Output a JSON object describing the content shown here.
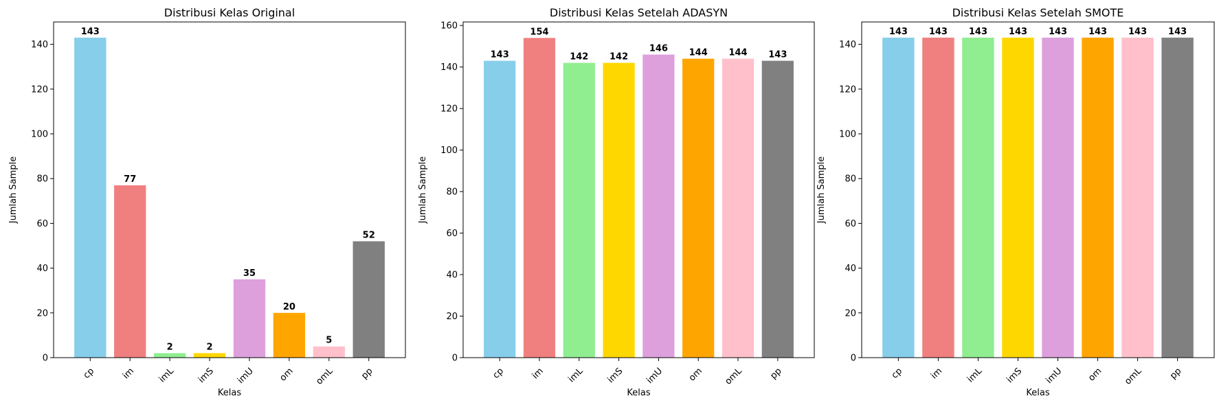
{
  "chart_data": [
    {
      "type": "bar",
      "title": "Distribusi Kelas Original",
      "xlabel": "Kelas",
      "ylabel": "Jumlah Sample",
      "categories": [
        "cp",
        "im",
        "imL",
        "imS",
        "imU",
        "om",
        "omL",
        "pp"
      ],
      "values": [
        143,
        77,
        2,
        2,
        35,
        20,
        5,
        52
      ],
      "ylim": [
        0,
        150
      ],
      "yticks": [
        0,
        20,
        40,
        60,
        80,
        100,
        120,
        140
      ],
      "grid": false,
      "colors": [
        "#87ceeb",
        "#f08080",
        "#90ee90",
        "#ffd700",
        "#dda0dd",
        "#ffa500",
        "#ffc0cb",
        "#808080"
      ]
    },
    {
      "type": "bar",
      "title": "Distribusi Kelas Setelah ADASYN",
      "xlabel": "Kelas",
      "ylabel": "Jumlah Sample",
      "categories": [
        "cp",
        "im",
        "imL",
        "imS",
        "imU",
        "om",
        "omL",
        "pp"
      ],
      "values": [
        143,
        154,
        142,
        142,
        146,
        144,
        144,
        143
      ],
      "ylim": [
        0,
        161.7
      ],
      "yticks": [
        0,
        20,
        40,
        60,
        80,
        100,
        120,
        140,
        160
      ],
      "grid": false,
      "colors": [
        "#87ceeb",
        "#f08080",
        "#90ee90",
        "#ffd700",
        "#dda0dd",
        "#ffa500",
        "#ffc0cb",
        "#808080"
      ]
    },
    {
      "type": "bar",
      "title": "Distribusi Kelas Setelah SMOTE",
      "xlabel": "Kelas",
      "ylabel": "Jumlah Sample",
      "categories": [
        "cp",
        "im",
        "imL",
        "imS",
        "imU",
        "om",
        "omL",
        "pp"
      ],
      "values": [
        143,
        143,
        143,
        143,
        143,
        143,
        143,
        143
      ],
      "ylim": [
        0,
        150
      ],
      "yticks": [
        0,
        20,
        40,
        60,
        80,
        100,
        120,
        140
      ],
      "grid": false,
      "colors": [
        "#87ceeb",
        "#f08080",
        "#90ee90",
        "#ffd700",
        "#dda0dd",
        "#ffa500",
        "#ffc0cb",
        "#808080"
      ]
    }
  ]
}
